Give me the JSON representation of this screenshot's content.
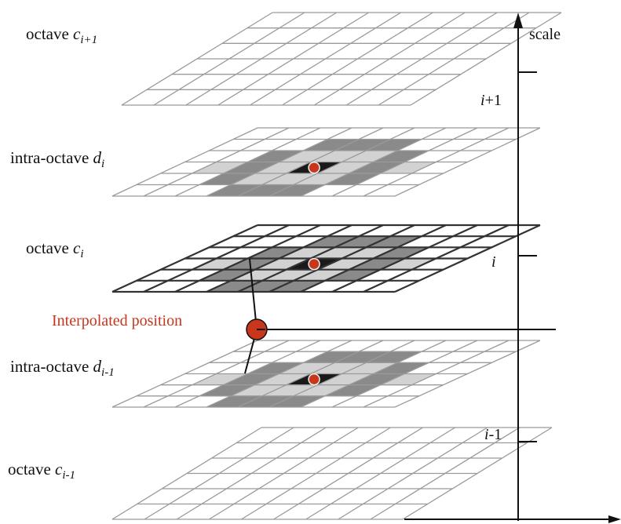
{
  "layers": [
    {
      "id": "octave-c-i-plus-1",
      "prefix": "octave ",
      "var": "c",
      "sub": "i+1",
      "highlight": false,
      "point": false
    },
    {
      "id": "intra-octave-d-i",
      "prefix": "intra-octave ",
      "var": "d",
      "sub": "i",
      "highlight": true,
      "point": true
    },
    {
      "id": "octave-c-i",
      "prefix": "octave ",
      "var": "c",
      "sub": "i",
      "highlight": true,
      "point": true,
      "dark": true
    },
    {
      "id": "intra-octave-d-i-minus-1",
      "prefix": "intra-octave ",
      "var": "d",
      "sub": "i-1",
      "highlight": true,
      "point": true
    },
    {
      "id": "octave-c-i-minus-1",
      "prefix": "octave ",
      "var": "c",
      "sub": "i-1",
      "highlight": false,
      "point": false
    }
  ],
  "interpolated_label": "Interpolated position",
  "axis": {
    "label": "scale",
    "ticks": [
      {
        "var": "i",
        "suffix": "+1"
      },
      {
        "var": "i",
        "suffix": ""
      },
      {
        "var": "i",
        "suffix": "-1"
      }
    ]
  },
  "colors": {
    "accent": "#c8361c",
    "grid_light": "#9a9a9a",
    "grid_dark": "#333333",
    "shade_dark": "#8a8a8a",
    "shade_light": "#d2d2d2",
    "center": "#1a1a1a"
  }
}
